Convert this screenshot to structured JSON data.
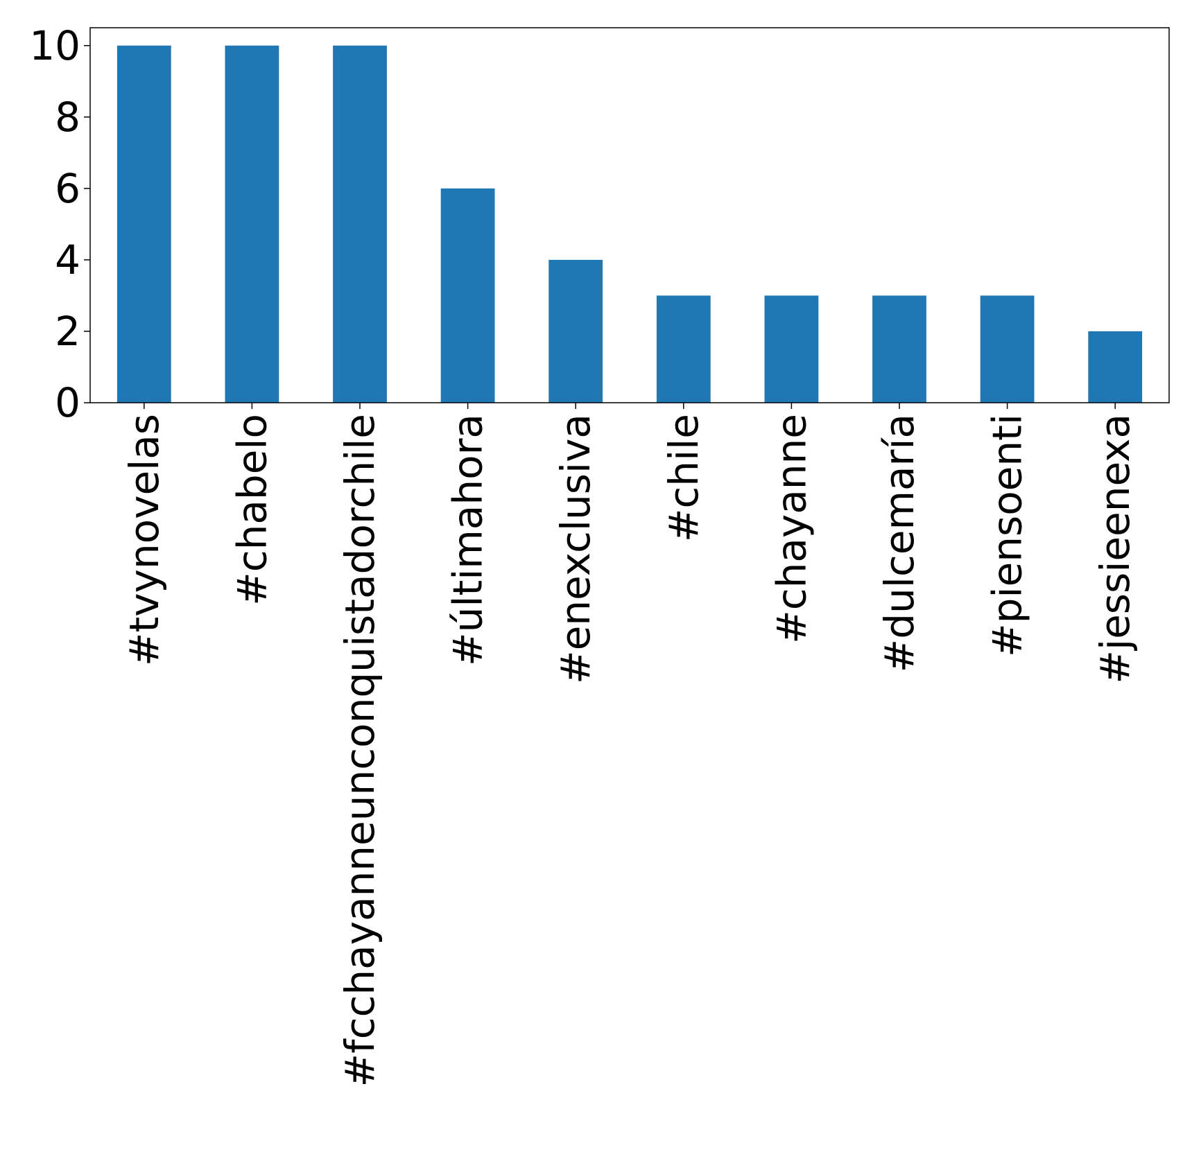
{
  "chart_data": {
    "type": "bar",
    "categories": [
      "#tvynovelas",
      "#chabelo",
      "#fcchayanneunconquistadorchile",
      "#últimahora",
      "#enexclusiva",
      "#chile",
      "#chayanne",
      "#dulcemaría",
      "#piensoenti",
      "#jessieenexa"
    ],
    "values": [
      10,
      10,
      10,
      6,
      4,
      3,
      3,
      3,
      3,
      2
    ],
    "title": "",
    "xlabel": "",
    "ylabel": "",
    "ylim": [
      0,
      10.5
    ],
    "yticks": [
      "0",
      "2",
      "4",
      "6",
      "8",
      "10"
    ],
    "grid": false,
    "legend": "none",
    "bar_color": "#1f77b4"
  }
}
